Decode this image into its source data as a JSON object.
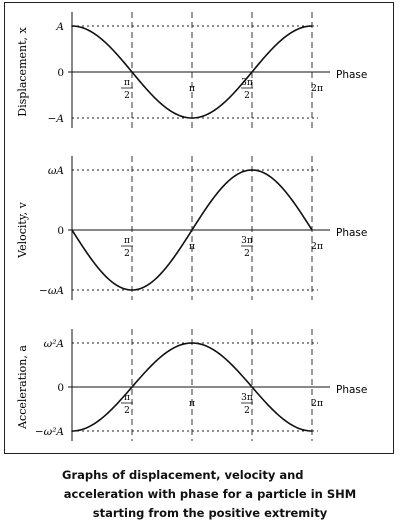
{
  "caption": {
    "line1": "Graphs of displacement, velocity and",
    "line2": "acceleration with phase for a particle in SHM",
    "line3": "starting from the positive extremity"
  },
  "chart_data": [
    {
      "type": "line",
      "ylabel": "Displacement, x",
      "xlabel": "Phase",
      "xlim": [
        0,
        6.2832
      ],
      "ylim": [
        -1,
        1
      ],
      "x_ticks": [
        "π/2",
        "π",
        "3π/2",
        "2π"
      ],
      "y_ticks": [
        {
          "value": 1,
          "label": "A"
        },
        {
          "value": 0,
          "label": "0"
        },
        {
          "value": -1,
          "label": "−A"
        }
      ],
      "series": [
        {
          "function": "cos",
          "x": [
            0,
            1.5708,
            3.1416,
            4.7124,
            6.2832
          ],
          "y": [
            1,
            0,
            -1,
            0,
            1
          ]
        }
      ]
    },
    {
      "type": "line",
      "ylabel": "Velocity, v",
      "xlabel": "Phase",
      "xlim": [
        0,
        6.2832
      ],
      "ylim": [
        -1,
        1
      ],
      "x_ticks": [
        "π/2",
        "π",
        "3π/2",
        "2π"
      ],
      "y_ticks": [
        {
          "value": 1,
          "label": "ωA"
        },
        {
          "value": 0,
          "label": "0"
        },
        {
          "value": -1,
          "label": "−ωA"
        }
      ],
      "series": [
        {
          "function": "-sin",
          "x": [
            0,
            1.5708,
            3.1416,
            4.7124,
            6.2832
          ],
          "y": [
            0,
            -1,
            0,
            1,
            0
          ]
        }
      ]
    },
    {
      "type": "line",
      "ylabel": "Acceleration, a",
      "xlabel": "Phase",
      "xlim": [
        0,
        6.2832
      ],
      "ylim": [
        -1,
        1
      ],
      "x_ticks": [
        "π/2",
        "π",
        "3π/2",
        "2π"
      ],
      "y_ticks": [
        {
          "value": 1,
          "label": "ω²A"
        },
        {
          "value": 0,
          "label": "0"
        },
        {
          "value": -1,
          "label": "−ω²A"
        }
      ],
      "series": [
        {
          "function": "-cos",
          "x": [
            0,
            1.5708,
            3.1416,
            4.7124,
            6.2832
          ],
          "y": [
            -1,
            0,
            1,
            0,
            -1
          ]
        }
      ]
    }
  ]
}
